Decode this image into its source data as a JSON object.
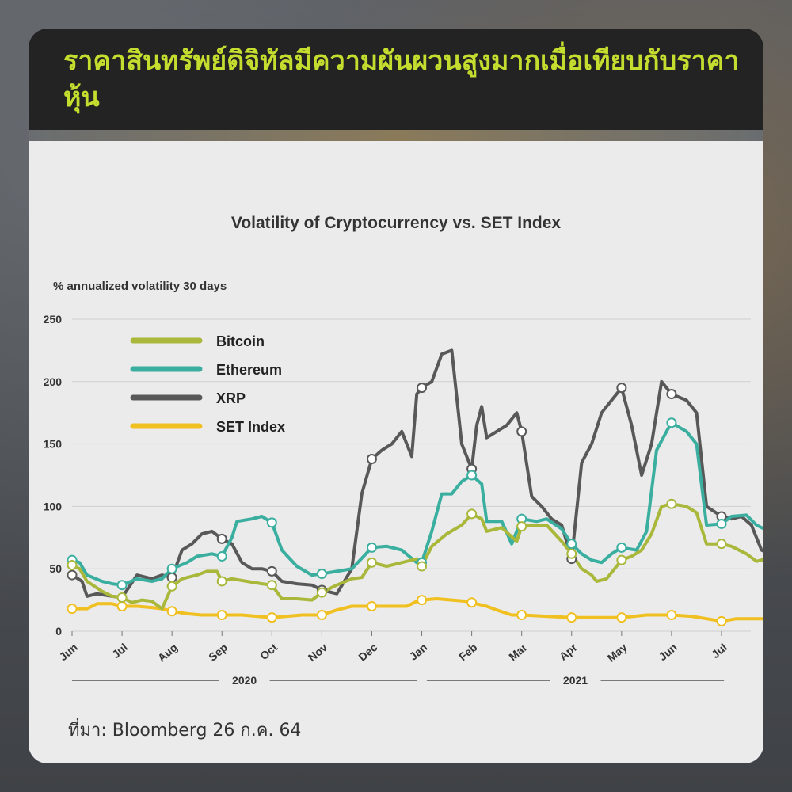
{
  "banner": {
    "title": "ราคาสินทรัพย์ดิจิทัลมีความผันผวนสูงมากเมื่อเทียบกับราคาหุ้น"
  },
  "source": "ที่มา: Bloomberg 26 ก.ค. 64",
  "colors": {
    "bitcoin": "#a9b83a",
    "ethereum": "#3aafa0",
    "xrp": "#585858",
    "set": "#f0c020",
    "banner_text": "#c4dd2e"
  },
  "chart_data": {
    "type": "line",
    "title": "Volatility of Cryptocurrency  vs. SET Index",
    "ylabel": "% annualized volatility 30 days",
    "ylim": [
      0,
      250
    ],
    "yticks": [
      0,
      50,
      100,
      150,
      200,
      250
    ],
    "grid": true,
    "legend_position": "top-left",
    "x_range": [
      0,
      13.9
    ],
    "x_ticks": [
      {
        "x": 0,
        "label": "Jun"
      },
      {
        "x": 1,
        "label": "Jul"
      },
      {
        "x": 2,
        "label": "Aug"
      },
      {
        "x": 3,
        "label": "Sep"
      },
      {
        "x": 4,
        "label": "Oct"
      },
      {
        "x": 5,
        "label": "Nov"
      },
      {
        "x": 6,
        "label": "Dec"
      },
      {
        "x": 7,
        "label": "Jan"
      },
      {
        "x": 8,
        "label": "Feb"
      },
      {
        "x": 9,
        "label": "Mar"
      },
      {
        "x": 10,
        "label": "Apr"
      },
      {
        "x": 11,
        "label": "May"
      },
      {
        "x": 12,
        "label": "Jun"
      },
      {
        "x": 13,
        "label": "Jul"
      }
    ],
    "year_groups": [
      {
        "label": "2020",
        "from": 0,
        "to": 6.9
      },
      {
        "label": "2021",
        "from": 7.1,
        "to": 13.05
      }
    ],
    "series": [
      {
        "name": "Bitcoin",
        "color_key": "bitcoin",
        "points": [
          [
            0,
            53
          ],
          [
            0.15,
            50
          ],
          [
            0.3,
            40
          ],
          [
            0.6,
            32
          ],
          [
            0.8,
            28
          ],
          [
            1,
            27
          ],
          [
            1.2,
            23
          ],
          [
            1.4,
            25
          ],
          [
            1.6,
            24
          ],
          [
            1.8,
            18
          ],
          [
            2,
            36
          ],
          [
            2.2,
            42
          ],
          [
            2.5,
            45
          ],
          [
            2.7,
            48
          ],
          [
            2.9,
            48
          ],
          [
            3,
            40
          ],
          [
            3.2,
            42
          ],
          [
            3.5,
            40
          ],
          [
            3.8,
            38
          ],
          [
            4,
            37
          ],
          [
            4.2,
            26
          ],
          [
            4.5,
            26
          ],
          [
            4.8,
            25
          ],
          [
            5,
            31
          ],
          [
            5.3,
            37
          ],
          [
            5.6,
            42
          ],
          [
            5.8,
            43
          ],
          [
            6,
            55
          ],
          [
            6.3,
            52
          ],
          [
            6.6,
            55
          ],
          [
            6.9,
            58
          ],
          [
            7,
            52
          ],
          [
            7.2,
            68
          ],
          [
            7.5,
            78
          ],
          [
            7.8,
            85
          ],
          [
            8,
            94
          ],
          [
            8.2,
            90
          ],
          [
            8.3,
            80
          ],
          [
            8.6,
            83
          ],
          [
            8.9,
            72
          ],
          [
            9,
            84
          ],
          [
            9.3,
            85
          ],
          [
            9.5,
            85
          ],
          [
            9.8,
            72
          ],
          [
            10,
            62
          ],
          [
            10.2,
            50
          ],
          [
            10.4,
            45
          ],
          [
            10.5,
            40
          ],
          [
            10.7,
            42
          ],
          [
            11,
            57
          ],
          [
            11.2,
            60
          ],
          [
            11.4,
            65
          ],
          [
            11.6,
            78
          ],
          [
            11.8,
            100
          ],
          [
            12,
            102
          ],
          [
            12.3,
            100
          ],
          [
            12.5,
            95
          ],
          [
            12.7,
            70
          ],
          [
            13,
            70
          ],
          [
            13.2,
            68
          ],
          [
            13.5,
            62
          ],
          [
            13.7,
            56
          ],
          [
            13.9,
            58
          ]
        ],
        "markers": [
          [
            0,
            53
          ],
          [
            1,
            27
          ],
          [
            2,
            36
          ],
          [
            3,
            40
          ],
          [
            4,
            37
          ],
          [
            5,
            31
          ],
          [
            6,
            55
          ],
          [
            7,
            52
          ],
          [
            8,
            94
          ],
          [
            9,
            84
          ],
          [
            10,
            62
          ],
          [
            11,
            57
          ],
          [
            12,
            102
          ],
          [
            13,
            70
          ]
        ]
      },
      {
        "name": "Ethereum",
        "color_key": "ethereum",
        "points": [
          [
            0,
            57
          ],
          [
            0.15,
            55
          ],
          [
            0.3,
            45
          ],
          [
            0.6,
            40
          ],
          [
            0.8,
            38
          ],
          [
            1,
            37
          ],
          [
            1.3,
            42
          ],
          [
            1.6,
            40
          ],
          [
            1.8,
            42
          ],
          [
            2,
            50
          ],
          [
            2.3,
            55
          ],
          [
            2.5,
            60
          ],
          [
            2.8,
            62
          ],
          [
            3,
            60
          ],
          [
            3.2,
            75
          ],
          [
            3.3,
            88
          ],
          [
            3.6,
            90
          ],
          [
            3.8,
            92
          ],
          [
            4,
            87
          ],
          [
            4.2,
            65
          ],
          [
            4.5,
            52
          ],
          [
            4.8,
            45
          ],
          [
            5,
            46
          ],
          [
            5.3,
            48
          ],
          [
            5.6,
            50
          ],
          [
            6,
            67
          ],
          [
            6.3,
            68
          ],
          [
            6.6,
            65
          ],
          [
            6.9,
            55
          ],
          [
            7,
            55
          ],
          [
            7.2,
            80
          ],
          [
            7.4,
            110
          ],
          [
            7.6,
            110
          ],
          [
            7.8,
            120
          ],
          [
            8,
            125
          ],
          [
            8.2,
            118
          ],
          [
            8.3,
            88
          ],
          [
            8.6,
            88
          ],
          [
            8.8,
            70
          ],
          [
            9,
            90
          ],
          [
            9.3,
            88
          ],
          [
            9.5,
            90
          ],
          [
            9.8,
            82
          ],
          [
            10,
            70
          ],
          [
            10.2,
            62
          ],
          [
            10.4,
            57
          ],
          [
            10.6,
            55
          ],
          [
            10.8,
            62
          ],
          [
            11,
            67
          ],
          [
            11.3,
            65
          ],
          [
            11.5,
            80
          ],
          [
            11.7,
            145
          ],
          [
            11.9,
            160
          ],
          [
            12,
            167
          ],
          [
            12.3,
            160
          ],
          [
            12.5,
            150
          ],
          [
            12.7,
            85
          ],
          [
            13,
            86
          ],
          [
            13.2,
            92
          ],
          [
            13.5,
            93
          ],
          [
            13.7,
            85
          ],
          [
            13.9,
            81
          ]
        ],
        "markers": [
          [
            0,
            57
          ],
          [
            1,
            37
          ],
          [
            2,
            50
          ],
          [
            3,
            60
          ],
          [
            4,
            87
          ],
          [
            5,
            46
          ],
          [
            6,
            67
          ],
          [
            7,
            55
          ],
          [
            8,
            125
          ],
          [
            9,
            90
          ],
          [
            10,
            70
          ],
          [
            11,
            67
          ],
          [
            12,
            167
          ],
          [
            13,
            86
          ]
        ]
      },
      {
        "name": "XRP",
        "color_key": "xrp",
        "points": [
          [
            0,
            45
          ],
          [
            0.2,
            40
          ],
          [
            0.3,
            28
          ],
          [
            0.5,
            30
          ],
          [
            0.8,
            28
          ],
          [
            1,
            27
          ],
          [
            1.3,
            45
          ],
          [
            1.6,
            42
          ],
          [
            1.8,
            45
          ],
          [
            2,
            43
          ],
          [
            2.2,
            65
          ],
          [
            2.4,
            70
          ],
          [
            2.6,
            78
          ],
          [
            2.8,
            80
          ],
          [
            3,
            74
          ],
          [
            3.2,
            70
          ],
          [
            3.4,
            55
          ],
          [
            3.6,
            50
          ],
          [
            3.8,
            50
          ],
          [
            4,
            48
          ],
          [
            4.2,
            40
          ],
          [
            4.5,
            38
          ],
          [
            4.8,
            37
          ],
          [
            5,
            33
          ],
          [
            5.3,
            30
          ],
          [
            5.6,
            50
          ],
          [
            5.8,
            110
          ],
          [
            6,
            138
          ],
          [
            6.2,
            145
          ],
          [
            6.4,
            150
          ],
          [
            6.6,
            160
          ],
          [
            6.8,
            140
          ],
          [
            6.9,
            190
          ],
          [
            7,
            195
          ],
          [
            7.2,
            200
          ],
          [
            7.4,
            222
          ],
          [
            7.6,
            225
          ],
          [
            7.8,
            150
          ],
          [
            8,
            130
          ],
          [
            8.1,
            165
          ],
          [
            8.2,
            180
          ],
          [
            8.3,
            155
          ],
          [
            8.5,
            160
          ],
          [
            8.7,
            165
          ],
          [
            8.9,
            175
          ],
          [
            9,
            160
          ],
          [
            9.2,
            108
          ],
          [
            9.4,
            100
          ],
          [
            9.6,
            90
          ],
          [
            9.8,
            85
          ],
          [
            10,
            58
          ],
          [
            10.2,
            135
          ],
          [
            10.4,
            150
          ],
          [
            10.6,
            175
          ],
          [
            10.8,
            185
          ],
          [
            11,
            195
          ],
          [
            11.2,
            165
          ],
          [
            11.4,
            125
          ],
          [
            11.6,
            150
          ],
          [
            11.8,
            200
          ],
          [
            12,
            190
          ],
          [
            12.3,
            185
          ],
          [
            12.5,
            175
          ],
          [
            12.7,
            100
          ],
          [
            13,
            92
          ],
          [
            13.2,
            90
          ],
          [
            13.4,
            92
          ],
          [
            13.6,
            85
          ],
          [
            13.8,
            65
          ],
          [
            13.9,
            63
          ]
        ],
        "markers": [
          [
            0,
            45
          ],
          [
            2,
            43
          ],
          [
            3,
            74
          ],
          [
            4,
            48
          ],
          [
            5,
            33
          ],
          [
            6,
            138
          ],
          [
            7,
            195
          ],
          [
            8,
            130
          ],
          [
            9,
            160
          ],
          [
            10,
            58
          ],
          [
            11,
            195
          ],
          [
            12,
            190
          ],
          [
            13,
            92
          ]
        ]
      },
      {
        "name": "SET Index",
        "color_key": "set",
        "points": [
          [
            0,
            18
          ],
          [
            0.3,
            18
          ],
          [
            0.5,
            22
          ],
          [
            0.8,
            22
          ],
          [
            1,
            20
          ],
          [
            1.3,
            20
          ],
          [
            1.6,
            19
          ],
          [
            1.8,
            18
          ],
          [
            2,
            16
          ],
          [
            2.3,
            14
          ],
          [
            2.6,
            13
          ],
          [
            3,
            13
          ],
          [
            3.4,
            13
          ],
          [
            3.7,
            12
          ],
          [
            4,
            11
          ],
          [
            4.3,
            12
          ],
          [
            4.6,
            13
          ],
          [
            5,
            13
          ],
          [
            5.3,
            17
          ],
          [
            5.6,
            20
          ],
          [
            6,
            20
          ],
          [
            6.3,
            20
          ],
          [
            6.7,
            20
          ],
          [
            6.9,
            24
          ],
          [
            7,
            25
          ],
          [
            7.3,
            26
          ],
          [
            7.6,
            25
          ],
          [
            7.9,
            24
          ],
          [
            8,
            23
          ],
          [
            8.3,
            20
          ],
          [
            8.5,
            17
          ],
          [
            8.8,
            13
          ],
          [
            9,
            13
          ],
          [
            9.5,
            12
          ],
          [
            10,
            11
          ],
          [
            10.5,
            11
          ],
          [
            11,
            11
          ],
          [
            11.5,
            13
          ],
          [
            12,
            13
          ],
          [
            12.4,
            12
          ],
          [
            12.7,
            10
          ],
          [
            13,
            8
          ],
          [
            13.3,
            10
          ],
          [
            13.6,
            10
          ],
          [
            13.9,
            10
          ]
        ],
        "markers": [
          [
            0,
            18
          ],
          [
            1,
            20
          ],
          [
            2,
            16
          ],
          [
            3,
            13
          ],
          [
            4,
            11
          ],
          [
            5,
            13
          ],
          [
            6,
            20
          ],
          [
            7,
            25
          ],
          [
            8,
            23
          ],
          [
            9,
            13
          ],
          [
            10,
            11
          ],
          [
            11,
            11
          ],
          [
            12,
            13
          ],
          [
            13,
            8
          ]
        ]
      }
    ]
  }
}
